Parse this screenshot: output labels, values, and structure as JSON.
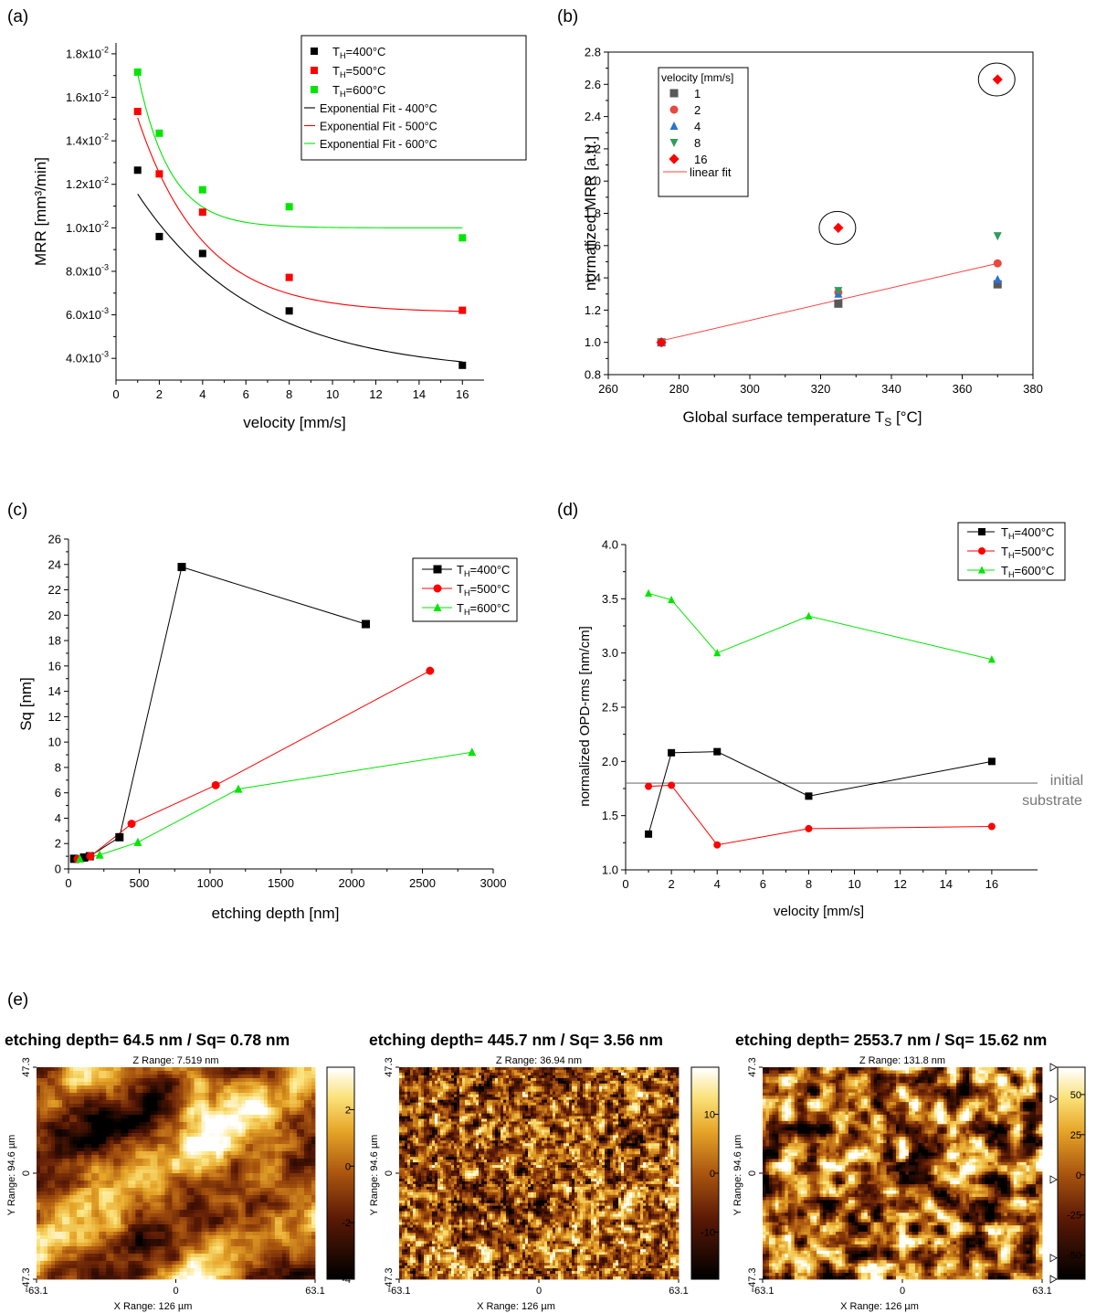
{
  "chart_data": [
    {
      "id": "a",
      "panel_label": "(a)",
      "type": "scatter",
      "xlabel": "velocity [mm/s]",
      "ylabel": "MRR [mm³/min]",
      "xlim": [
        0,
        17
      ],
      "ylim": [
        0.003,
        0.0185
      ],
      "xticks": [
        0,
        2,
        4,
        6,
        8,
        10,
        12,
        14,
        16
      ],
      "yticks": [
        {
          "v": 0.004,
          "m": "4.0x10",
          "e": "-3"
        },
        {
          "v": 0.006,
          "m": "6.0x10",
          "e": "-3"
        },
        {
          "v": 0.008,
          "m": "8.0x10",
          "e": "-3"
        },
        {
          "v": 0.01,
          "m": "1.0x10",
          "e": "-2"
        },
        {
          "v": 0.012,
          "m": "1.2x10",
          "e": "-2"
        },
        {
          "v": 0.014,
          "m": "1.4x10",
          "e": "-2"
        },
        {
          "v": 0.016,
          "m": "1.6x10",
          "e": "-2"
        },
        {
          "v": 0.018,
          "m": "1.8x10",
          "e": "-2"
        }
      ],
      "series": [
        {
          "name": "T_H=400°C",
          "lb": "T",
          "ls": "H",
          "la": "=400°C",
          "color": "#000000",
          "marker": "square",
          "x": [
            1,
            2,
            4,
            8,
            16
          ],
          "y": [
            0.01265,
            0.0096,
            0.00882,
            0.00618,
            0.00368
          ]
        },
        {
          "name": "T_H=500°C",
          "lb": "T",
          "ls": "H",
          "la": "=500°C",
          "color": "#ff0000",
          "marker": "square",
          "x": [
            1,
            2,
            4,
            8,
            16
          ],
          "y": [
            0.01535,
            0.01248,
            0.01072,
            0.00772,
            0.00621
          ]
        },
        {
          "name": "T_H=600°C",
          "lb": "T",
          "ls": "H",
          "la": "=600°C",
          "color": "#00e600",
          "marker": "square",
          "x": [
            1,
            2,
            4,
            8,
            16
          ],
          "y": [
            0.01716,
            0.01435,
            0.01175,
            0.01097,
            0.00954
          ]
        }
      ],
      "fits": [
        {
          "name": "Exponential Fit - 400°C",
          "color": "#000000",
          "y0": 0.0033,
          "A": 0.0099,
          "t": 5.5,
          "x0": 1,
          "x1": 16
        },
        {
          "name": "Exponential Fit - 500°C",
          "color": "#ff0000",
          "y0": 0.0061,
          "A": 0.0125,
          "t": 3.0,
          "x0": 1,
          "x1": 16
        },
        {
          "name": "Exponential Fit - 600°C",
          "color": "#00e600",
          "y0": 0.01,
          "A": 0.0138,
          "t": 1.5,
          "x0": 1,
          "x1": 16
        }
      ],
      "legend_position": "top-right"
    },
    {
      "id": "b",
      "panel_label": "(b)",
      "type": "scatter",
      "xlabel": "Global surface temperature T",
      "xlabel_sub": "S",
      "xlabel_after": " [°C]",
      "ylabel": "normalized MRR [a.u.]",
      "xlim": [
        260,
        380
      ],
      "ylim": [
        0.8,
        2.8
      ],
      "xticks": [
        260,
        280,
        300,
        320,
        340,
        360,
        380
      ],
      "yticks": [
        0.8,
        1.0,
        1.2,
        1.4,
        1.6,
        1.8,
        2.0,
        2.2,
        2.4,
        2.6,
        2.8
      ],
      "legend_title": "velocity [mm/s]",
      "series": [
        {
          "name": "1",
          "color": "#595959",
          "marker": "square",
          "x": [
            275,
            325,
            370
          ],
          "y": [
            1.0,
            1.24,
            1.36
          ]
        },
        {
          "name": "2",
          "color": "#e8483f",
          "marker": "circle",
          "x": [
            275,
            325,
            370
          ],
          "y": [
            1.0,
            1.31,
            1.49
          ]
        },
        {
          "name": "4",
          "color": "#2a72d6",
          "marker": "triangle",
          "x": [
            275,
            325,
            370
          ],
          "y": [
            1.0,
            1.3,
            1.39
          ]
        },
        {
          "name": "8",
          "color": "#2e9d5e",
          "marker": "triangle-down",
          "x": [
            275,
            325,
            370
          ],
          "y": [
            1.0,
            1.32,
            1.66
          ]
        },
        {
          "name": "16",
          "color": "#ff0000",
          "marker": "diamond",
          "x": [
            275,
            325,
            370
          ],
          "y": [
            1.0,
            1.71,
            2.63
          ]
        }
      ],
      "fit": {
        "name": "linear fit",
        "color": "#ff4040",
        "x": [
          275,
          370
        ],
        "y": [
          1.01,
          1.49
        ]
      },
      "circled": [
        {
          "x": 325,
          "y": 1.71
        },
        {
          "x": 370,
          "y": 2.63
        }
      ],
      "legend_position": "top-left"
    },
    {
      "id": "c",
      "panel_label": "(c)",
      "type": "line",
      "xlabel": "etching depth [nm]",
      "ylabel": "Sq [nm]",
      "xlim": [
        0,
        3000
      ],
      "ylim": [
        0,
        26
      ],
      "xticks": [
        0,
        500,
        1000,
        1500,
        2000,
        2500,
        3000
      ],
      "yticks": [
        0,
        2,
        4,
        6,
        8,
        10,
        12,
        14,
        16,
        18,
        20,
        22,
        24,
        26
      ],
      "series": [
        {
          "name": "T_H=400°C",
          "lb": "T",
          "ls": "H",
          "la": "=400°C",
          "color": "#000000",
          "marker": "square",
          "x": [
            40,
            110,
            150,
            360,
            800,
            2100
          ],
          "y": [
            0.8,
            0.9,
            1.0,
            2.5,
            23.8,
            19.3
          ]
        },
        {
          "name": "T_H=500°C",
          "lb": "T",
          "ls": "H",
          "la": "=500°C",
          "color": "#ff0000",
          "marker": "circle",
          "x": [
            64.5,
            155,
            445.7,
            1040,
            2553.7
          ],
          "y": [
            0.78,
            1.0,
            3.56,
            6.6,
            15.62
          ]
        },
        {
          "name": "T_H=600°C",
          "lb": "T",
          "ls": "H",
          "la": "=600°C",
          "color": "#00e600",
          "marker": "triangle",
          "x": [
            80,
            220,
            490,
            1200,
            2850
          ],
          "y": [
            0.8,
            1.1,
            2.1,
            6.3,
            9.2
          ]
        }
      ],
      "legend_position": "top-right"
    },
    {
      "id": "d",
      "panel_label": "(d)",
      "type": "line",
      "xlabel": "velocity [mm/s]",
      "ylabel": "normalized OPD-rms [nm/cm]",
      "xlim": [
        0,
        18
      ],
      "ylim": [
        1.0,
        4.0
      ],
      "xticks": [
        0,
        2,
        4,
        6,
        8,
        10,
        12,
        14,
        16
      ],
      "yticks": [
        1.0,
        1.5,
        2.0,
        2.5,
        3.0,
        3.5,
        4.0
      ],
      "series": [
        {
          "name": "T_H=400°C",
          "lb": "T",
          "ls": "H",
          "la": "=400°C",
          "color": "#000000",
          "marker": "square",
          "x": [
            1,
            2,
            4,
            8,
            16
          ],
          "y": [
            1.33,
            2.08,
            2.09,
            1.68,
            2.0
          ]
        },
        {
          "name": "T_H=500°C",
          "lb": "T",
          "ls": "H",
          "la": "=500°C",
          "color": "#ff0000",
          "marker": "circle",
          "x": [
            1,
            2,
            4,
            8,
            16
          ],
          "y": [
            1.77,
            1.78,
            1.23,
            1.38,
            1.4
          ]
        },
        {
          "name": "T_H=600°C",
          "lb": "T",
          "ls": "H",
          "la": "=600°C",
          "color": "#00e600",
          "marker": "triangle",
          "x": [
            1,
            2,
            4,
            8,
            16
          ],
          "y": [
            3.55,
            3.49,
            3.0,
            3.34,
            2.94
          ]
        }
      ],
      "reference_line": {
        "y": 1.8,
        "label_line1": "initial",
        "label_line2": "substrate",
        "color": "#777777"
      },
      "legend_position": "top-right"
    },
    {
      "id": "e",
      "panel_label": "(e)",
      "type": "heatmap",
      "maps": [
        {
          "title": "etching depth= 64.5 nm / Sq= 0.78 nm",
          "z_range": "Z Range:  7.519 nm",
          "x_range": "X Range:  126 µm",
          "y_range": "Y Range:  94.6 µm",
          "x_ticks": [
            "-63.1",
            "0",
            "63.1"
          ],
          "y_ticks": [
            "47.3",
            "0",
            "-47.3"
          ],
          "colorbar": {
            "min": -4,
            "max": 3.5,
            "ticks": [
              2,
              0,
              -2,
              -4
            ]
          },
          "texture": "smooth",
          "seed": 7
        },
        {
          "title": "etching depth= 445.7 nm / Sq= 3.56 nm",
          "z_range": "Z Range:  36.94 nm",
          "x_range": "X Range:  126 µm",
          "y_range": "Y Range:  94.6 µm",
          "x_ticks": [
            "-63.1",
            "0",
            "63.1"
          ],
          "y_ticks": [
            "47.3",
            "0",
            "-47.3"
          ],
          "colorbar": {
            "min": -18,
            "max": 18,
            "ticks": [
              10,
              0,
              -10
            ]
          },
          "texture": "fine",
          "seed": 19
        },
        {
          "title": "etching depth= 2553.7 nm / Sq= 15.62 nm",
          "z_range": "Z Range:  131.8 nm",
          "x_range": "X Range:  126 µm",
          "y_range": "Y Range:  94.6 µm",
          "x_ticks": [
            "-63.1",
            "0",
            "63.1"
          ],
          "y_ticks": [
            "47.3",
            "0",
            "-47.3"
          ],
          "colorbar": {
            "min": -65,
            "max": 67,
            "ticks": [
              50,
              25,
              0,
              -25,
              -50
            ]
          },
          "texture": "blobs",
          "seed": 31
        }
      ]
    }
  ]
}
